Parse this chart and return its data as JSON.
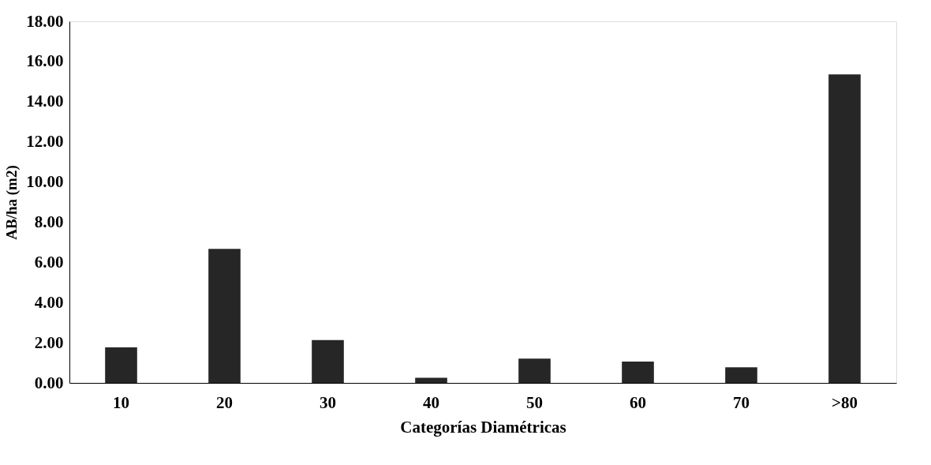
{
  "chart_data": {
    "type": "bar",
    "xlabel": "Categorías Diamétricas",
    "ylabel": "AB/ha (m2)",
    "categories": [
      "10",
      "20",
      "30",
      "40",
      "50",
      "60",
      "70",
      ">80"
    ],
    "values": [
      1.77,
      6.67,
      2.13,
      0.26,
      1.21,
      1.06,
      0.78,
      15.36
    ],
    "color": "#262626",
    "ylim": [
      0,
      18
    ],
    "yticks": [
      {
        "value": 0,
        "label": "0.00"
      },
      {
        "value": 2,
        "label": "2.00"
      },
      {
        "value": 4,
        "label": "4.00"
      },
      {
        "value": 6,
        "label": "6.00"
      },
      {
        "value": 8,
        "label": "8.00"
      },
      {
        "value": 10,
        "label": "10.00"
      },
      {
        "value": 12,
        "label": "12.00"
      },
      {
        "value": 14,
        "label": "14.00"
      },
      {
        "value": 16,
        "label": "16.00"
      },
      {
        "value": 18,
        "label": "18.00"
      }
    ],
    "grid": false
  }
}
